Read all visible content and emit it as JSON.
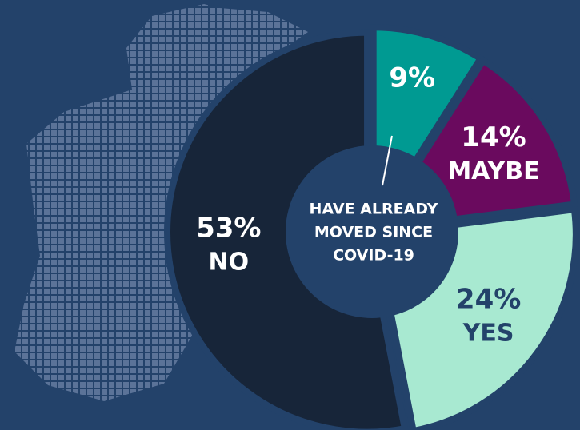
{
  "chart_data": {
    "type": "pie",
    "categories": [
      null,
      "MAYBE",
      "YES",
      "NO"
    ],
    "values": [
      9,
      14,
      24,
      53
    ],
    "value_labels": [
      "9%",
      "14%",
      "24%",
      "53%"
    ],
    "colors": [
      "#009a92",
      "#6a0a5e",
      "#a8e9d1",
      "#172539"
    ],
    "label_colors": [
      "#ffffff",
      "#ffffff",
      "#23426a",
      "#ffffff"
    ],
    "center_label": [
      "HAVE ALREADY",
      "MOVED SINCE",
      "COVID-19"
    ]
  }
}
